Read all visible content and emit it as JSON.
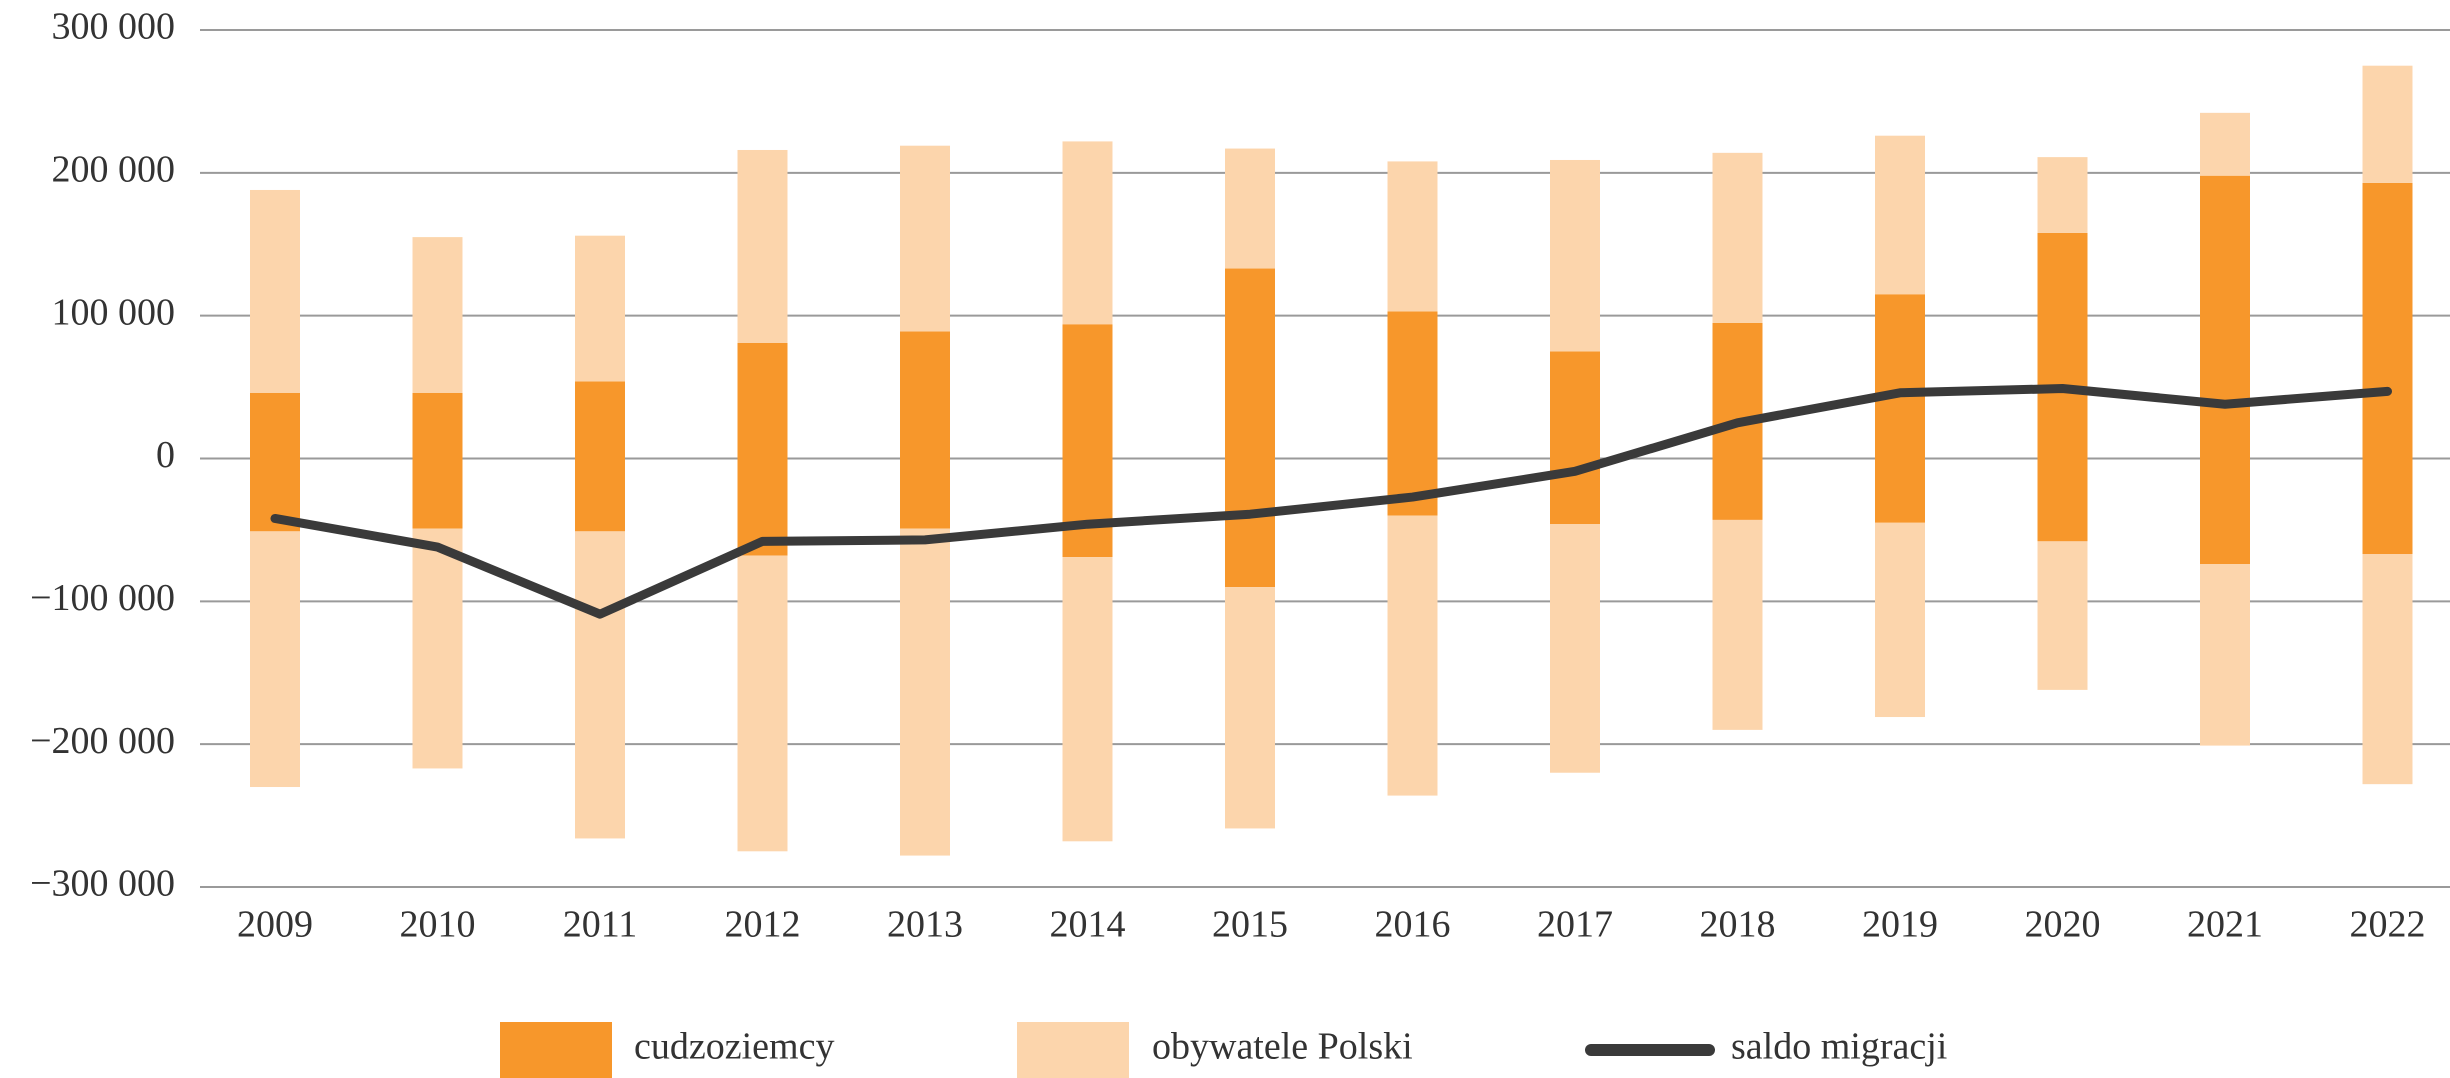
{
  "chart_data": {
    "type": "bar",
    "categories": [
      "2009",
      "2010",
      "2011",
      "2012",
      "2013",
      "2014",
      "2015",
      "2016",
      "2017",
      "2018",
      "2019",
      "2020",
      "2021",
      "2022"
    ],
    "series": [
      {
        "name": "cudzoziemcy",
        "color": "#f7972b",
        "values": [
          46000,
          46000,
          54000,
          81000,
          89000,
          94000,
          133000,
          103000,
          75000,
          95000,
          115000,
          158000,
          198000,
          193000
        ],
        "negative_values": [
          -51000,
          -49000,
          -51000,
          -68000,
          -49000,
          -69000,
          -90000,
          -40000,
          -46000,
          -43000,
          -45000,
          -58000,
          -74000,
          -67000
        ]
      },
      {
        "name": "obywatele Polski",
        "color": "#fcd5ac",
        "values": [
          142000,
          109000,
          102000,
          135000,
          130000,
          128000,
          84000,
          105000,
          134000,
          119000,
          111000,
          53000,
          44000,
          82000
        ],
        "negative_values": [
          -179000,
          -168000,
          -215000,
          -207000,
          -229000,
          -199000,
          -169000,
          -196000,
          -174000,
          -147000,
          -136000,
          -104000,
          -127000,
          -161000
        ]
      },
      {
        "name": "saldo migracji",
        "color": "#3a3a3a",
        "type": "line",
        "values": [
          -42000,
          -62000,
          -109000,
          -58000,
          -57000,
          -46000,
          -39000,
          -27000,
          -9000,
          25000,
          46000,
          49000,
          38000,
          47000
        ]
      }
    ],
    "ylim": [
      -300000,
      300000
    ],
    "yticks": [
      {
        "value": -300000,
        "label": "−300 000"
      },
      {
        "value": -200000,
        "label": "−200 000"
      },
      {
        "value": -100000,
        "label": "−100 000"
      },
      0,
      {
        "value": 100000,
        "label": "100 000"
      },
      {
        "value": 200000,
        "label": "200 000"
      },
      {
        "value": 300000,
        "label": "300 000"
      }
    ],
    "grid": true
  }
}
